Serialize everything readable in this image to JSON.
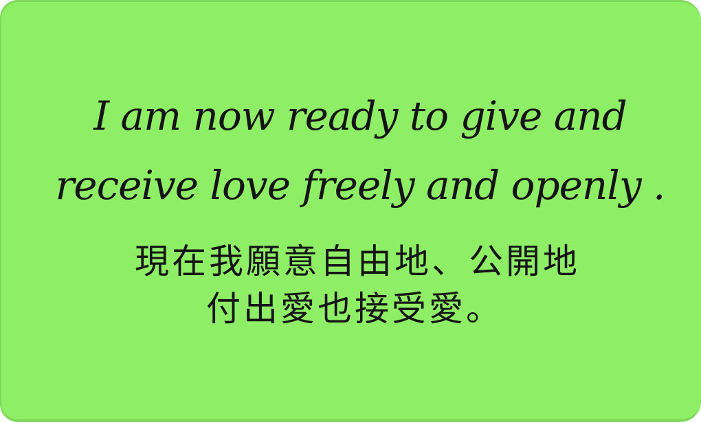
{
  "card": {
    "background_color": "#8eee65",
    "text_color": "#141414",
    "english_lines": [
      "I am now ready to give and",
      "receive love freely and openly ."
    ],
    "chinese_lines": [
      "現在我願意自由地、公開地",
      "付出愛也接受愛。"
    ]
  }
}
